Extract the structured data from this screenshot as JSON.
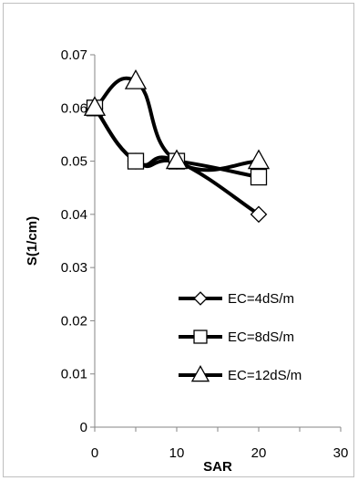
{
  "chart_data": {
    "type": "line",
    "xlabel": "SAR",
    "ylabel": "S(1/cm)",
    "xlim": [
      0,
      30
    ],
    "ylim": [
      0,
      0.07
    ],
    "x_ticks": [
      "0",
      "10",
      "20",
      "30"
    ],
    "y_ticks": [
      "0",
      "0.01",
      "0.02",
      "0.03",
      "0.04",
      "0.05",
      "0.06",
      "0.07"
    ],
    "x": [
      0,
      5,
      10,
      20
    ],
    "series": [
      {
        "name": "EC=4dS/m",
        "marker": "diamond",
        "values": [
          0.06,
          0.05,
          0.05,
          0.04
        ]
      },
      {
        "name": "EC=8dS/m",
        "marker": "square",
        "values": [
          0.06,
          0.05,
          0.05,
          0.047
        ]
      },
      {
        "name": "EC=12dS/m",
        "marker": "triangle",
        "values": [
          0.06,
          0.065,
          0.05,
          0.05
        ]
      }
    ],
    "grid": false,
    "legend_position": "bottom-right",
    "line_color": "#000000"
  }
}
